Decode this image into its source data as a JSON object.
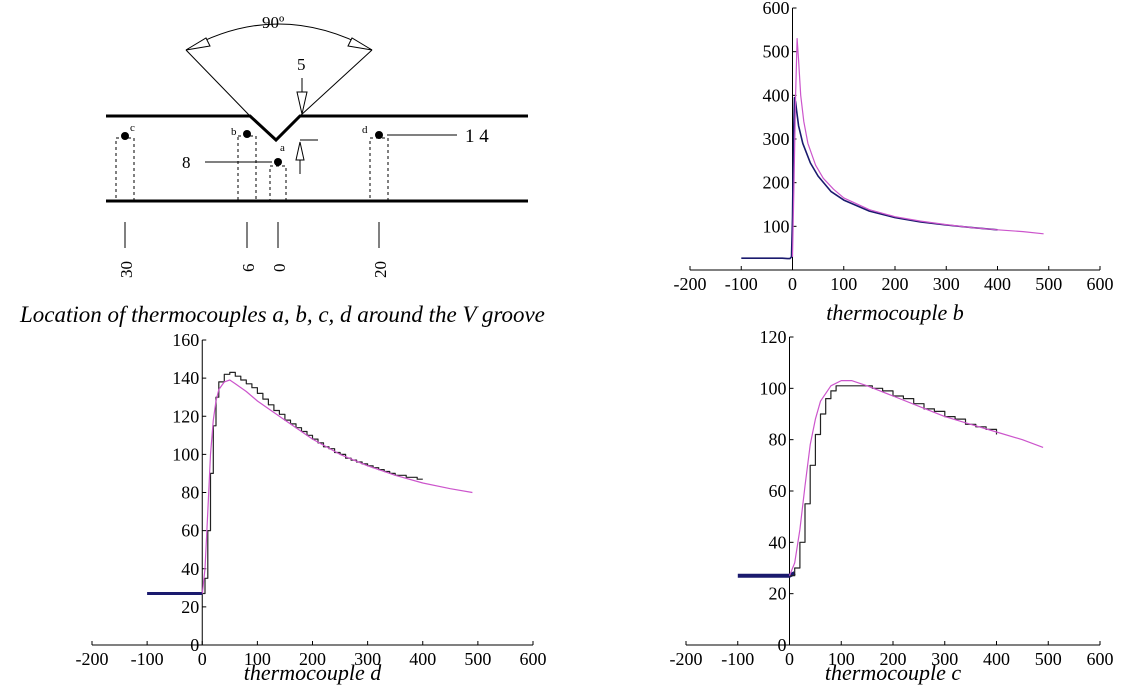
{
  "diagram": {
    "caption": "Location of thermocouples a, b, c, d around the V groove",
    "angle_label": "90º",
    "dim_top": "5",
    "dim_depth_a": "8",
    "dim_depth_d": "1 4",
    "tc_labels": [
      "a",
      "b",
      "c",
      "d"
    ],
    "positions": [
      "30",
      "6",
      "0",
      "20"
    ]
  },
  "chart_data": [
    {
      "id": "b",
      "type": "line",
      "xlabel": "thermocouple b",
      "ylabel": "",
      "title": "",
      "xlim": [
        -200,
        600
      ],
      "ylim": [
        0,
        600
      ],
      "xticks": [
        -200,
        -100,
        0,
        100,
        200,
        300,
        400,
        500,
        600
      ],
      "yticks": [
        100,
        200,
        300,
        400,
        500,
        600
      ],
      "series": [
        {
          "color": "#1a1a6e",
          "width": 1.6,
          "x": [
            -100,
            -20,
            -10,
            -5,
            -2,
            0,
            2,
            4,
            6,
            8,
            12,
            20,
            35,
            50,
            75,
            100,
            150,
            200,
            250,
            300,
            350,
            400
          ],
          "y": [
            27,
            27,
            26,
            26,
            30,
            120,
            300,
            395,
            385,
            365,
            330,
            290,
            245,
            215,
            180,
            160,
            135,
            120,
            110,
            103,
            97,
            92
          ]
        },
        {
          "color": "#cc55cc",
          "width": 1.2,
          "x": [
            0,
            3,
            6,
            9,
            12,
            16,
            22,
            30,
            45,
            60,
            80,
            100,
            150,
            200,
            250,
            300,
            350,
            400,
            450,
            490
          ],
          "y": [
            30,
            200,
            400,
            530,
            480,
            400,
            340,
            290,
            240,
            210,
            185,
            165,
            138,
            122,
            112,
            104,
            97,
            92,
            88,
            83
          ]
        }
      ]
    },
    {
      "id": "d",
      "type": "line",
      "xlabel": "thermocouple d",
      "ylabel": "",
      "title": "",
      "xlim": [
        -200,
        600
      ],
      "ylim": [
        0,
        160
      ],
      "xticks": [
        -200,
        -100,
        0,
        100,
        200,
        300,
        400,
        500,
        600
      ],
      "yticks": [
        0,
        20,
        40,
        60,
        80,
        100,
        120,
        140,
        160
      ],
      "series": [
        {
          "color": "#1a1a6e",
          "width": 3.0,
          "x": [
            -100,
            0
          ],
          "y": [
            27,
            27
          ]
        },
        {
          "color": "#222222",
          "width": 1.2,
          "step": true,
          "x": [
            0,
            5,
            10,
            15,
            20,
            25,
            30,
            40,
            50,
            60,
            70,
            80,
            90,
            100,
            110,
            120,
            130,
            140,
            150,
            160,
            170,
            180,
            190,
            200,
            210,
            220,
            230,
            240,
            250,
            260,
            270,
            280,
            290,
            300,
            310,
            320,
            330,
            340,
            350,
            360,
            370,
            380,
            390,
            400
          ],
          "y": [
            27,
            35,
            60,
            90,
            115,
            130,
            138,
            142,
            143,
            141,
            139,
            137,
            135,
            132,
            129,
            126,
            123,
            121,
            118,
            116,
            114,
            112,
            110,
            108,
            106,
            104,
            103,
            101,
            100,
            98,
            97,
            96,
            95,
            94,
            93,
            92,
            91,
            90,
            89,
            89,
            88,
            88,
            87,
            87
          ]
        },
        {
          "color": "#cc55cc",
          "width": 1.2,
          "x": [
            0,
            5,
            10,
            15,
            20,
            25,
            30,
            40,
            50,
            60,
            80,
            100,
            150,
            200,
            250,
            300,
            350,
            400,
            450,
            490
          ],
          "y": [
            27,
            40,
            70,
            100,
            118,
            128,
            134,
            138,
            139,
            137,
            133,
            128,
            118,
            108,
            100,
            94,
            89,
            85,
            82,
            80
          ]
        }
      ]
    },
    {
      "id": "c",
      "type": "line",
      "xlabel": "thermocouple c",
      "ylabel": "",
      "title": "",
      "xlim": [
        -200,
        600
      ],
      "ylim": [
        0,
        120
      ],
      "xticks": [
        -200,
        -100,
        0,
        100,
        200,
        300,
        400,
        500,
        600
      ],
      "yticks": [
        0,
        20,
        40,
        60,
        80,
        100,
        120
      ],
      "series": [
        {
          "color": "#1a1a6e",
          "width": 4.0,
          "x": [
            -100,
            0,
            10
          ],
          "y": [
            27,
            27,
            28
          ]
        },
        {
          "color": "#222222",
          "width": 1.2,
          "step": true,
          "x": [
            0,
            10,
            20,
            30,
            40,
            50,
            60,
            70,
            80,
            90,
            100,
            120,
            140,
            160,
            180,
            200,
            220,
            240,
            260,
            280,
            300,
            320,
            340,
            360,
            380,
            400
          ],
          "y": [
            27,
            30,
            40,
            55,
            70,
            82,
            90,
            96,
            99,
            101,
            101,
            101,
            101,
            100,
            99,
            97,
            96,
            94,
            92,
            91,
            89,
            88,
            86,
            85,
            84,
            82
          ]
        },
        {
          "color": "#cc55cc",
          "width": 1.2,
          "x": [
            0,
            10,
            20,
            30,
            40,
            50,
            60,
            80,
            100,
            120,
            150,
            200,
            250,
            300,
            350,
            400,
            450,
            490
          ],
          "y": [
            27,
            32,
            45,
            62,
            78,
            88,
            95,
            101,
            103,
            103,
            101,
            97,
            93,
            89,
            86,
            83,
            80,
            77
          ]
        }
      ]
    }
  ]
}
